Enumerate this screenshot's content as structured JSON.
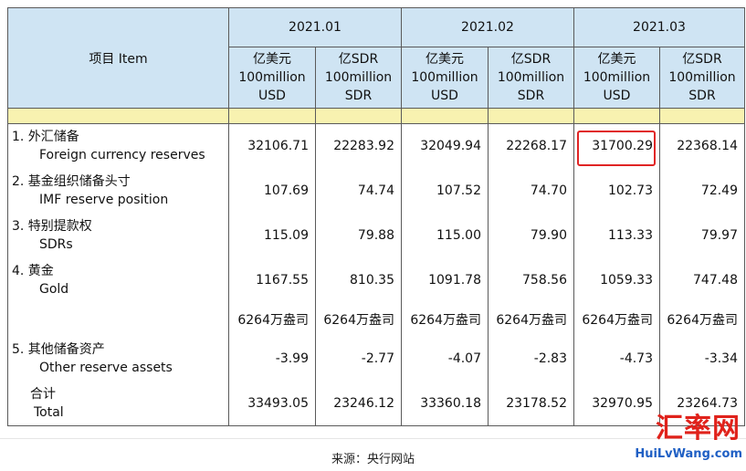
{
  "header": {
    "item_label": "项目  Item",
    "months": [
      "2021.01",
      "2021.02",
      "2021.03"
    ],
    "unit_usd": [
      "亿美元",
      "100million",
      "USD"
    ],
    "unit_sdr": [
      "亿SDR",
      "100million",
      "SDR"
    ]
  },
  "rows": [
    {
      "cn": "1.  外汇储备",
      "en": "Foreign currency reserves",
      "values": [
        "32106.71",
        "22283.92",
        "32049.94",
        "22268.17",
        "31700.29",
        "22368.14"
      ]
    },
    {
      "cn": "2.  基金组织储备头寸",
      "en": "IMF reserve position",
      "values": [
        "107.69",
        "74.74",
        "107.52",
        "74.70",
        "102.73",
        "72.49"
      ]
    },
    {
      "cn": "3.  特别提款权",
      "en": "SDRs",
      "values": [
        "115.09",
        "79.88",
        "115.00",
        "79.90",
        "113.33",
        "79.97"
      ]
    },
    {
      "cn": "4.  黄金",
      "en": "Gold",
      "values": [
        "1167.55",
        "810.35",
        "1091.78",
        "758.56",
        "1059.33",
        "747.48"
      ]
    },
    {
      "cn": "",
      "en": "",
      "values": [
        "6264万盎司",
        "6264万盎司",
        "6264万盎司",
        "6264万盎司",
        "6264万盎司",
        "6264万盎司"
      ]
    },
    {
      "cn": "5.  其他储备资产",
      "en": "Other reserve assets",
      "values": [
        "-3.99",
        "-2.77",
        "-4.07",
        "-2.83",
        "-4.73",
        "-3.34"
      ]
    },
    {
      "cn": "合计",
      "en": "Total",
      "values": [
        "33493.05",
        "23246.12",
        "33360.18",
        "23178.52",
        "32970.95",
        "23264.73"
      ]
    }
  ],
  "source": "来源：央行网站",
  "watermark": {
    "cn": "汇率网",
    "en": "HuiLvWang.com"
  },
  "colors": {
    "header_bg": "#cfe4f3",
    "band": "#f8f2b0",
    "highlight": "#e02424"
  }
}
